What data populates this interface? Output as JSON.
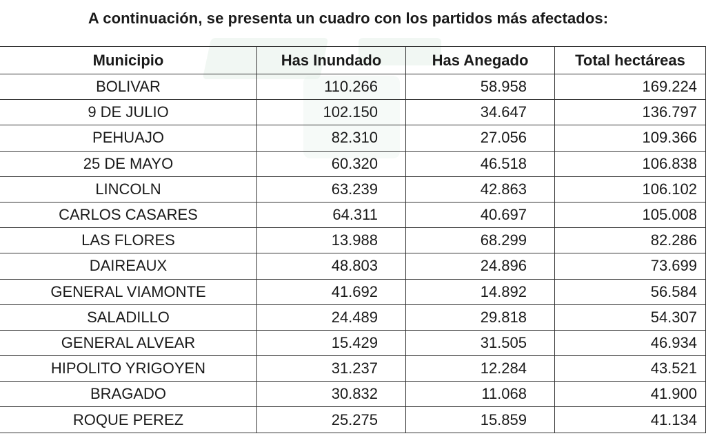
{
  "title": "A continuación, se presenta un cuadro con los partidos más afectados:",
  "table": {
    "headers": [
      "Municipio",
      "Has Inundado",
      "Has Anegado",
      "Total hectáreas"
    ],
    "rows": [
      [
        "BOLIVAR",
        "110.266",
        "58.958",
        "169.224"
      ],
      [
        "9 DE JULIO",
        "102.150",
        "34.647",
        "136.797"
      ],
      [
        "PEHUAJO",
        "82.310",
        "27.056",
        "109.366"
      ],
      [
        "25 DE MAYO",
        "60.320",
        "46.518",
        "106.838"
      ],
      [
        "LINCOLN",
        "63.239",
        "42.863",
        "106.102"
      ],
      [
        "CARLOS CASARES",
        "64.311",
        "40.697",
        "105.008"
      ],
      [
        "LAS FLORES",
        "13.988",
        "68.299",
        "82.286"
      ],
      [
        "DAIREAUX",
        "48.803",
        "24.896",
        "73.699"
      ],
      [
        "GENERAL VIAMONTE",
        "41.692",
        "14.892",
        "56.584"
      ],
      [
        "SALADILLO",
        "24.489",
        "29.818",
        "54.307"
      ],
      [
        "GENERAL ALVEAR",
        "15.429",
        "31.505",
        "46.934"
      ],
      [
        "HIPOLITO YRIGOYEN",
        "31.237",
        "12.284",
        "43.521"
      ],
      [
        "BRAGADO",
        "30.832",
        "11.068",
        "41.900"
      ],
      [
        "ROQUE PEREZ",
        "25.275",
        "15.859",
        "41.134"
      ]
    ]
  }
}
